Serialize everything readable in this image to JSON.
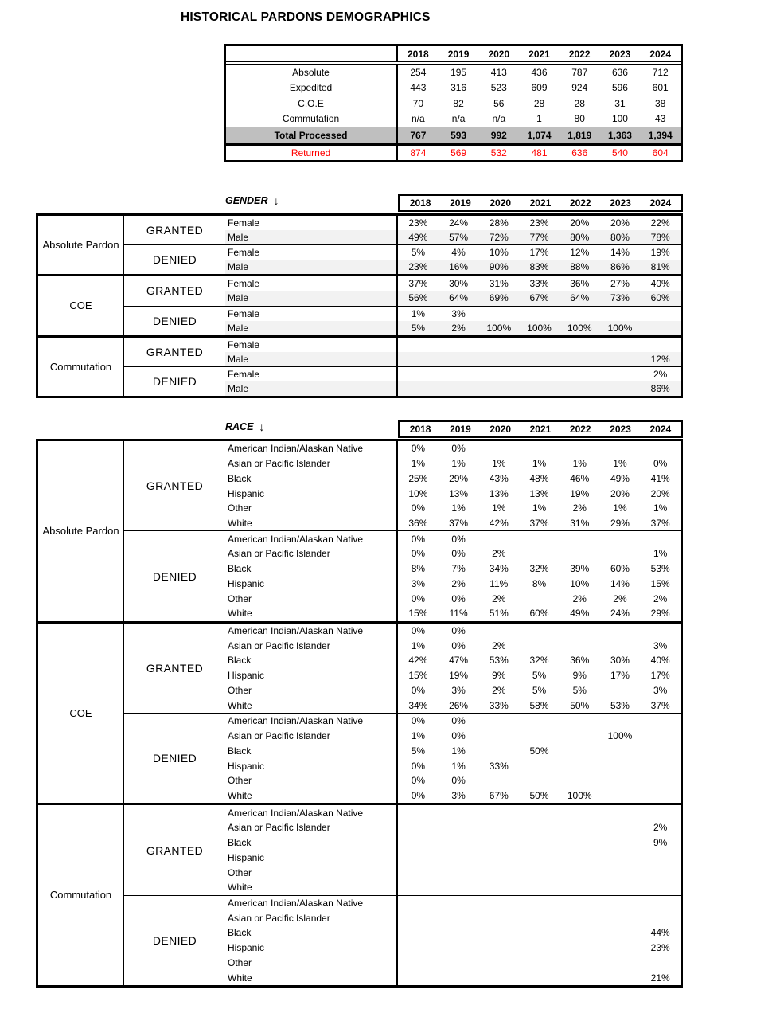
{
  "title": "HISTORICAL PARDONS DEMOGRAPHICS",
  "years": [
    "2018",
    "2019",
    "2020",
    "2021",
    "2022",
    "2023",
    "2024"
  ],
  "colors": {
    "returned_text": "#FF0000",
    "total_row_bg": "#BFBFBF",
    "row_shade": "#F2F2F2",
    "border": "#000000"
  },
  "summary_table": {
    "rows": [
      {
        "label": "Absolute",
        "style": "normal",
        "values": [
          "254",
          "195",
          "413",
          "436",
          "787",
          "636",
          "712"
        ]
      },
      {
        "label": "Expedited",
        "style": "normal",
        "values": [
          "443",
          "316",
          "523",
          "609",
          "924",
          "596",
          "601"
        ]
      },
      {
        "label": "C.O.E",
        "style": "normal",
        "values": [
          "70",
          "82",
          "56",
          "28",
          "28",
          "31",
          "38"
        ]
      },
      {
        "label": "Commutation",
        "style": "normal",
        "values": [
          "n/a",
          "n/a",
          "n/a",
          "1",
          "80",
          "100",
          "43"
        ]
      },
      {
        "label": "Total Processed",
        "style": "total",
        "values": [
          "767",
          "593",
          "992",
          "1,074",
          "1,819",
          "1,363",
          "1,394"
        ]
      },
      {
        "label": "Returned",
        "style": "returned",
        "values": [
          "874",
          "569",
          "532",
          "481",
          "636",
          "540",
          "604"
        ]
      }
    ]
  },
  "gender_table": {
    "header_label": "GENDER",
    "arrow": "↓",
    "sections": [
      {
        "group": "Absolute Pardon",
        "subsections": [
          {
            "status": "GRANTED",
            "rows": [
              {
                "label": "Female",
                "shaded": false,
                "values": [
                  "23%",
                  "24%",
                  "28%",
                  "23%",
                  "20%",
                  "20%",
                  "22%"
                ]
              },
              {
                "label": "Male",
                "shaded": true,
                "values": [
                  "49%",
                  "57%",
                  "72%",
                  "77%",
                  "80%",
                  "80%",
                  "78%"
                ]
              }
            ]
          },
          {
            "status": "DENIED",
            "rows": [
              {
                "label": "Female",
                "shaded": false,
                "values": [
                  "5%",
                  "4%",
                  "10%",
                  "17%",
                  "12%",
                  "14%",
                  "19%"
                ]
              },
              {
                "label": "Male",
                "shaded": true,
                "values": [
                  "23%",
                  "16%",
                  "90%",
                  "83%",
                  "88%",
                  "86%",
                  "81%"
                ]
              }
            ]
          }
        ]
      },
      {
        "group": "COE",
        "subsections": [
          {
            "status": "GRANTED",
            "rows": [
              {
                "label": "Female",
                "shaded": false,
                "values": [
                  "37%",
                  "30%",
                  "31%",
                  "33%",
                  "36%",
                  "27%",
                  "40%"
                ]
              },
              {
                "label": "Male",
                "shaded": true,
                "values": [
                  "56%",
                  "64%",
                  "69%",
                  "67%",
                  "64%",
                  "73%",
                  "60%"
                ]
              }
            ]
          },
          {
            "status": "DENIED",
            "rows": [
              {
                "label": "Female",
                "shaded": false,
                "values": [
                  "1%",
                  "3%",
                  "",
                  "",
                  "",
                  "",
                  ""
                ]
              },
              {
                "label": "Male",
                "shaded": true,
                "values": [
                  "5%",
                  "2%",
                  "100%",
                  "100%",
                  "100%",
                  "100%",
                  ""
                ]
              }
            ]
          }
        ]
      },
      {
        "group": "Commutation",
        "subsections": [
          {
            "status": "GRANTED",
            "rows": [
              {
                "label": "Female",
                "shaded": false,
                "values": [
                  "",
                  "",
                  "",
                  "",
                  "",
                  "",
                  ""
                ]
              },
              {
                "label": "Male",
                "shaded": true,
                "values": [
                  "",
                  "",
                  "",
                  "",
                  "",
                  "",
                  "12%"
                ]
              }
            ]
          },
          {
            "status": "DENIED",
            "rows": [
              {
                "label": "Female",
                "shaded": false,
                "values": [
                  "",
                  "",
                  "",
                  "",
                  "",
                  "",
                  "2%"
                ]
              },
              {
                "label": "Male",
                "shaded": true,
                "values": [
                  "",
                  "",
                  "",
                  "",
                  "",
                  "",
                  "86%"
                ]
              }
            ]
          }
        ]
      }
    ]
  },
  "race_table": {
    "header_label": "RACE",
    "arrow": "↓",
    "sections": [
      {
        "group": "Absolute Pardon",
        "subsections": [
          {
            "status": "GRANTED",
            "rows": [
              {
                "label": "American Indian/Alaskan Native",
                "shaded": false,
                "values": [
                  "0%",
                  "0%",
                  "",
                  "",
                  "",
                  "",
                  ""
                ]
              },
              {
                "label": "Asian or Pacific Islander",
                "shaded": false,
                "values": [
                  "1%",
                  "1%",
                  "1%",
                  "1%",
                  "1%",
                  "1%",
                  "0%"
                ]
              },
              {
                "label": "Black",
                "shaded": false,
                "values": [
                  "25%",
                  "29%",
                  "43%",
                  "48%",
                  "46%",
                  "49%",
                  "41%"
                ]
              },
              {
                "label": "Hispanic",
                "shaded": false,
                "values": [
                  "10%",
                  "13%",
                  "13%",
                  "13%",
                  "19%",
                  "20%",
                  "20%"
                ]
              },
              {
                "label": "Other",
                "shaded": false,
                "values": [
                  "0%",
                  "1%",
                  "1%",
                  "1%",
                  "2%",
                  "1%",
                  "1%"
                ]
              },
              {
                "label": "White",
                "shaded": false,
                "values": [
                  "36%",
                  "37%",
                  "42%",
                  "37%",
                  "31%",
                  "29%",
                  "37%"
                ]
              }
            ]
          },
          {
            "status": "DENIED",
            "rows": [
              {
                "label": "American Indian/Alaskan Native",
                "shaded": false,
                "values": [
                  "0%",
                  "0%",
                  "",
                  "",
                  "",
                  "",
                  ""
                ]
              },
              {
                "label": "Asian or Pacific Islander",
                "shaded": false,
                "values": [
                  "0%",
                  "0%",
                  "2%",
                  "",
                  "",
                  "",
                  "1%"
                ]
              },
              {
                "label": "Black",
                "shaded": false,
                "values": [
                  "8%",
                  "7%",
                  "34%",
                  "32%",
                  "39%",
                  "60%",
                  "53%"
                ]
              },
              {
                "label": "Hispanic",
                "shaded": false,
                "values": [
                  "3%",
                  "2%",
                  "11%",
                  "8%",
                  "10%",
                  "14%",
                  "15%"
                ]
              },
              {
                "label": "Other",
                "shaded": false,
                "values": [
                  "0%",
                  "0%",
                  "2%",
                  "",
                  "2%",
                  "2%",
                  "2%"
                ]
              },
              {
                "label": "White",
                "shaded": false,
                "values": [
                  "15%",
                  "11%",
                  "51%",
                  "60%",
                  "49%",
                  "24%",
                  "29%"
                ]
              }
            ]
          }
        ]
      },
      {
        "group": "COE",
        "subsections": [
          {
            "status": "GRANTED",
            "rows": [
              {
                "label": "American Indian/Alaskan Native",
                "shaded": false,
                "values": [
                  "0%",
                  "0%",
                  "",
                  "",
                  "",
                  "",
                  ""
                ]
              },
              {
                "label": "Asian or Pacific Islander",
                "shaded": false,
                "values": [
                  "1%",
                  "0%",
                  "2%",
                  "",
                  "",
                  "",
                  "3%"
                ]
              },
              {
                "label": "Black",
                "shaded": false,
                "values": [
                  "42%",
                  "47%",
                  "53%",
                  "32%",
                  "36%",
                  "30%",
                  "40%"
                ]
              },
              {
                "label": "Hispanic",
                "shaded": false,
                "values": [
                  "15%",
                  "19%",
                  "9%",
                  "5%",
                  "9%",
                  "17%",
                  "17%"
                ]
              },
              {
                "label": "Other",
                "shaded": false,
                "values": [
                  "0%",
                  "3%",
                  "2%",
                  "5%",
                  "5%",
                  "",
                  "3%"
                ]
              },
              {
                "label": "White",
                "shaded": false,
                "values": [
                  "34%",
                  "26%",
                  "33%",
                  "58%",
                  "50%",
                  "53%",
                  "37%"
                ]
              }
            ]
          },
          {
            "status": "DENIED",
            "rows": [
              {
                "label": "American Indian/Alaskan Native",
                "shaded": false,
                "values": [
                  "0%",
                  "0%",
                  "",
                  "",
                  "",
                  "",
                  ""
                ]
              },
              {
                "label": "Asian or Pacific Islander",
                "shaded": false,
                "values": [
                  "1%",
                  "0%",
                  "",
                  "",
                  "",
                  "100%",
                  ""
                ]
              },
              {
                "label": "Black",
                "shaded": false,
                "values": [
                  "5%",
                  "1%",
                  "",
                  "50%",
                  "",
                  "",
                  ""
                ]
              },
              {
                "label": "Hispanic",
                "shaded": false,
                "values": [
                  "0%",
                  "1%",
                  "33%",
                  "",
                  "",
                  "",
                  ""
                ]
              },
              {
                "label": "Other",
                "shaded": false,
                "values": [
                  "0%",
                  "0%",
                  "",
                  "",
                  "",
                  "",
                  ""
                ]
              },
              {
                "label": "White",
                "shaded": false,
                "values": [
                  "0%",
                  "3%",
                  "67%",
                  "50%",
                  "100%",
                  "",
                  ""
                ]
              }
            ]
          }
        ]
      },
      {
        "group": "Commutation",
        "subsections": [
          {
            "status": "GRANTED",
            "rows": [
              {
                "label": "American Indian/Alaskan Native",
                "shaded": false,
                "values": [
                  "",
                  "",
                  "",
                  "",
                  "",
                  "",
                  ""
                ]
              },
              {
                "label": "Asian or Pacific Islander",
                "shaded": false,
                "values": [
                  "",
                  "",
                  "",
                  "",
                  "",
                  "",
                  "2%"
                ]
              },
              {
                "label": "Black",
                "shaded": false,
                "values": [
                  "",
                  "",
                  "",
                  "",
                  "",
                  "",
                  "9%"
                ]
              },
              {
                "label": "Hispanic",
                "shaded": false,
                "values": [
                  "",
                  "",
                  "",
                  "",
                  "",
                  "",
                  ""
                ]
              },
              {
                "label": "Other",
                "shaded": false,
                "values": [
                  "",
                  "",
                  "",
                  "",
                  "",
                  "",
                  ""
                ]
              },
              {
                "label": "White",
                "shaded": false,
                "values": [
                  "",
                  "",
                  "",
                  "",
                  "",
                  "",
                  ""
                ]
              }
            ]
          },
          {
            "status": "DENIED",
            "rows": [
              {
                "label": "American Indian/Alaskan Native",
                "shaded": false,
                "values": [
                  "",
                  "",
                  "",
                  "",
                  "",
                  "",
                  ""
                ]
              },
              {
                "label": "Asian or Pacific Islander",
                "shaded": false,
                "values": [
                  "",
                  "",
                  "",
                  "",
                  "",
                  "",
                  ""
                ]
              },
              {
                "label": "Black",
                "shaded": false,
                "values": [
                  "",
                  "",
                  "",
                  "",
                  "",
                  "",
                  "44%"
                ]
              },
              {
                "label": "Hispanic",
                "shaded": false,
                "values": [
                  "",
                  "",
                  "",
                  "",
                  "",
                  "",
                  "23%"
                ]
              },
              {
                "label": "Other",
                "shaded": false,
                "values": [
                  "",
                  "",
                  "",
                  "",
                  "",
                  "",
                  ""
                ]
              },
              {
                "label": "White",
                "shaded": false,
                "values": [
                  "",
                  "",
                  "",
                  "",
                  "",
                  "",
                  "21%"
                ]
              }
            ]
          }
        ]
      }
    ]
  }
}
